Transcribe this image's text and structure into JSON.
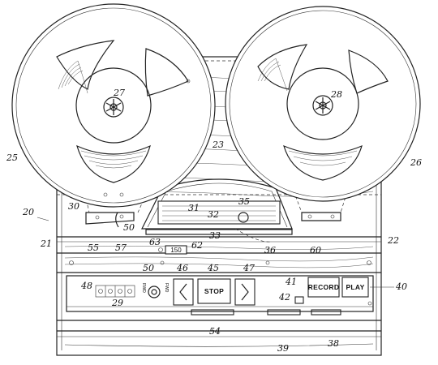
{
  "figure": {
    "buttons": {
      "stop": "STOP",
      "record": "RECORD",
      "play": "PLAY"
    },
    "counter_label": "150",
    "panel_tiny_text": [
      "RWD",
      "FWD"
    ],
    "refs": {
      "system": "20",
      "body": "21",
      "plate": "22",
      "deck": "23",
      "left_reel": "25",
      "right_reel": "26",
      "left_spindle": "27",
      "right_spindle": "28",
      "dial": "29",
      "guide": "30",
      "head_cover": "31",
      "head_cover_b": "32",
      "bar": "33",
      "capstan": "35",
      "arm": "36",
      "lower_bar": "38",
      "base": "39",
      "play_ref": "40",
      "record_ref": "41",
      "record_lamp": "42",
      "stop_ref": "45",
      "rewind_ref": "46",
      "forward_ref": "47",
      "selector": "48",
      "knob": "50",
      "knob_b": "50",
      "slot_a": "54",
      "guide_left": "55",
      "post": "57",
      "guide_right": "60",
      "counter": "62",
      "counter_reset": "63"
    }
  }
}
